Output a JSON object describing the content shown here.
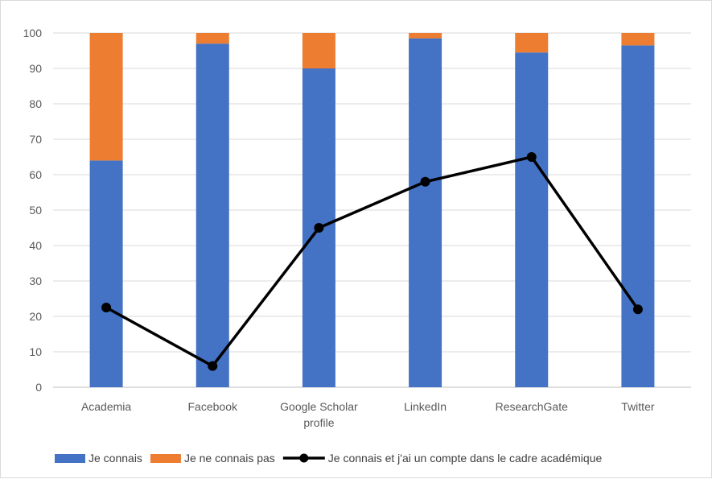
{
  "chart_data": {
    "type": "bar",
    "stacked": true,
    "categories": [
      [
        "Academia"
      ],
      [
        "Facebook"
      ],
      [
        "Google Scholar",
        "profile"
      ],
      [
        "LinkedIn"
      ],
      [
        "ResearchGate"
      ],
      [
        "Twitter"
      ]
    ],
    "series": [
      {
        "name": "Je connais",
        "kind": "bar",
        "color": "#4472c4",
        "values": [
          64,
          97,
          90,
          98.5,
          94.5,
          96.5
        ]
      },
      {
        "name": "Je ne connais pas",
        "kind": "bar",
        "color": "#ed7d31",
        "values": [
          36,
          3,
          10,
          1.5,
          5.5,
          3.5
        ]
      },
      {
        "name": "Je connais et j'ai un compte dans le cadre académique",
        "kind": "line",
        "color": "#000000",
        "values": [
          22.5,
          6,
          45,
          58,
          65,
          22
        ]
      }
    ],
    "ylim": [
      0,
      100
    ],
    "yticks": [
      0,
      10,
      20,
      30,
      40,
      50,
      60,
      70,
      80,
      90,
      100
    ],
    "grid": true,
    "legend_position": "bottom"
  }
}
